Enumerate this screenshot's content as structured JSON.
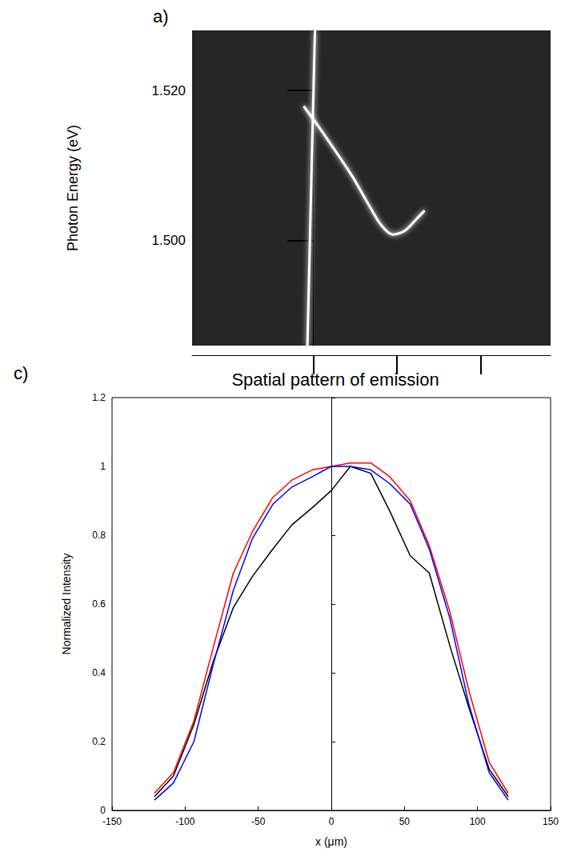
{
  "chart_data": [
    {
      "panel_label": "a)",
      "type": "line",
      "ylabel": "Photon Energy (eV)",
      "xlim": [
        -1.45,
        2.84
      ],
      "xticks": [
        0,
        1,
        2
      ],
      "ylim": [
        1.486,
        1.528
      ],
      "yticks": [
        {
          "value": 1.5,
          "label": "1.500"
        },
        {
          "value": 1.52,
          "label": "1.520"
        }
      ],
      "tick_labels": "y",
      "grid": false,
      "series": [
        {
          "color": "#ffffff",
          "x": [
            0.02,
            -0.07
          ],
          "values": [
            1.528,
            1.486
          ]
        },
        {
          "color": "#ffffff",
          "x": [
            -0.114,
            0.095,
            0.286,
            0.476,
            0.667,
            0.81,
            0.952,
            1.095,
            1.238,
            1.333
          ],
          "values": [
            1.5179,
            1.5147,
            1.5116,
            1.5084,
            1.5047,
            1.5021,
            1.5008,
            1.5013,
            1.5029,
            1.504
          ]
        }
      ]
    },
    {
      "panel_label": "c)",
      "type": "line",
      "title": "Spatial pattern of emission",
      "xlabel": "x (μm)",
      "ylabel": "Normalized Intensity",
      "x": [
        -121,
        -108,
        -94,
        -81,
        -67,
        -54,
        -40,
        -27,
        -13,
        0,
        13,
        27,
        40,
        54,
        67,
        81,
        94,
        108,
        121
      ],
      "xlim": [
        -150,
        150
      ],
      "xticks": [
        -150,
        -100,
        -50,
        0,
        50,
        100,
        150
      ],
      "ylim": [
        0,
        1.2
      ],
      "yticks": [
        0,
        0.2,
        0.4,
        0.6,
        0.8,
        1,
        1.2
      ],
      "grid": false,
      "series": [
        {
          "color": "#000000",
          "values": [
            0.04,
            0.1,
            0.25,
            0.43,
            0.59,
            0.68,
            0.76,
            0.83,
            0.88,
            0.93,
            1.0,
            0.98,
            0.87,
            0.74,
            0.69,
            0.48,
            0.3,
            0.12,
            0.04
          ]
        },
        {
          "color": "#ff0000",
          "values": [
            0.05,
            0.11,
            0.26,
            0.47,
            0.69,
            0.81,
            0.91,
            0.96,
            0.99,
            1.0,
            1.01,
            1.01,
            0.97,
            0.9,
            0.77,
            0.58,
            0.35,
            0.14,
            0.05
          ]
        },
        {
          "color": "#0000ff",
          "values": [
            0.03,
            0.08,
            0.2,
            0.42,
            0.64,
            0.79,
            0.89,
            0.94,
            0.97,
            1.0,
            1.0,
            0.99,
            0.95,
            0.89,
            0.76,
            0.56,
            0.31,
            0.11,
            0.03
          ]
        }
      ]
    }
  ]
}
